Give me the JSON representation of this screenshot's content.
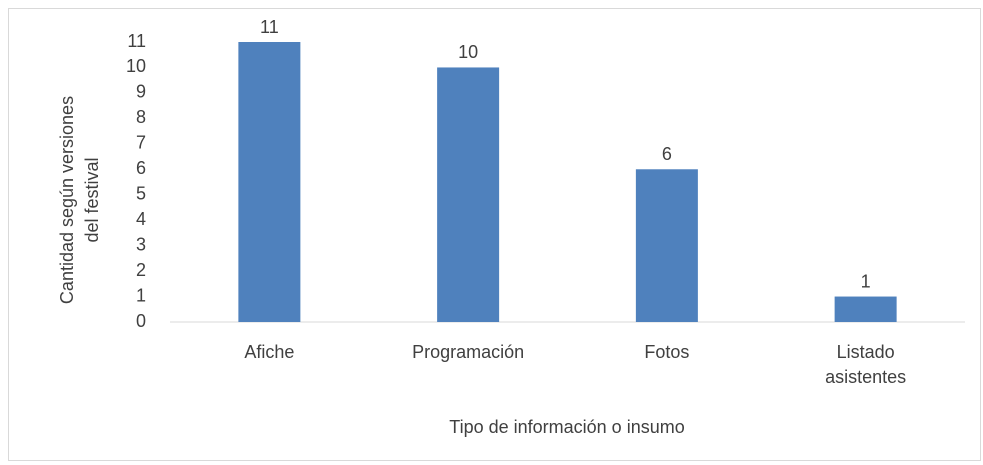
{
  "chart_data": {
    "type": "bar",
    "x_label": "Tipo de información  o insumo",
    "y_label": [
      "Cantidad  según versiones",
      "del festival"
    ],
    "categories": [
      "Afiche",
      "Programación",
      "Fotos",
      "Listado asistentes"
    ],
    "values": [
      11,
      10,
      6,
      1
    ],
    "color": "#4f81bd",
    "ylim": [
      0,
      11
    ],
    "yticks": [
      0,
      1,
      2,
      3,
      4,
      5,
      6,
      7,
      8,
      9,
      10,
      11
    ],
    "grid": false
  }
}
